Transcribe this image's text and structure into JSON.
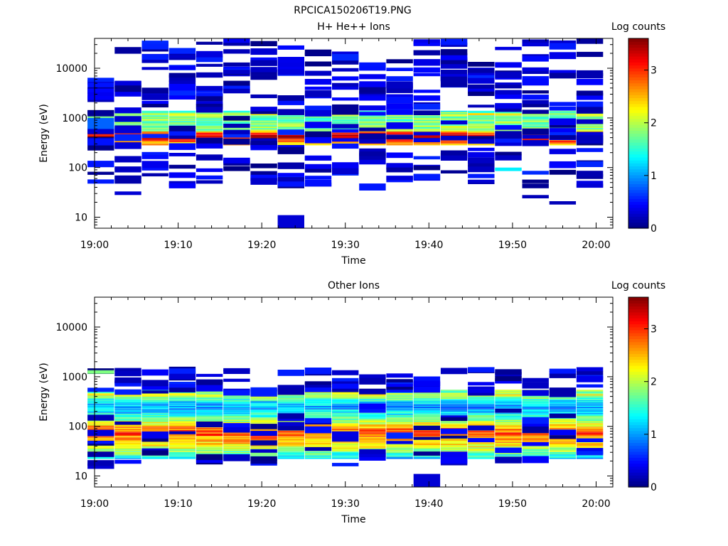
{
  "figure": {
    "title": "RPCICA150206T19.PNG"
  },
  "chart_data": [
    {
      "type": "heatmap",
      "title": "H+ He++ Ions",
      "xlabel": "Time",
      "ylabel": "Energy (eV)",
      "x_range": [
        "19:00:00",
        "20:02:00"
      ],
      "x_ticks": [
        "19:00",
        "19:10",
        "19:20",
        "19:30",
        "19:40",
        "19:50",
        "20:00"
      ],
      "y_scale": "log",
      "y_range": [
        6,
        40000
      ],
      "y_ticks": [
        "10",
        "100",
        "1000",
        "10000"
      ],
      "colorbar": {
        "label": "Log counts",
        "range": [
          0,
          3.6
        ],
        "ticks": [
          "0",
          "1",
          "2",
          "3"
        ]
      },
      "time_bins": [
        "19:00:45",
        "19:04:00",
        "19:07:15",
        "19:10:30",
        "19:13:45",
        "19:17:00",
        "19:20:15",
        "19:23:30",
        "19:26:45",
        "19:30:00",
        "19:33:15",
        "19:36:30",
        "19:39:45",
        "19:43:00",
        "19:46:15",
        "19:49:30",
        "19:52:45",
        "19:56:00",
        "19:59:15"
      ],
      "profile": [
        [
          300,
          2.5
        ],
        [
          330,
          2.9
        ],
        [
          370,
          3.2
        ],
        [
          410,
          3.4
        ],
        [
          450,
          3.2
        ],
        [
          500,
          2.7
        ],
        [
          540,
          1.9
        ],
        [
          1050,
          1.7
        ],
        [
          1150,
          2.2
        ],
        [
          1250,
          1.8
        ],
        [
          1350,
          1.2
        ]
      ],
      "profile_energy_range": [
        280,
        1380
      ],
      "extras": [
        {
          "t": 7,
          "e_low": 6,
          "e_high": 11,
          "v": 0.3
        },
        {
          "t": 0,
          "e_low": 600,
          "e_high": 1000,
          "v": 0.8
        },
        {
          "t": 15,
          "e_low": 85,
          "e_high": 100,
          "v": 1.3
        },
        {
          "t": 16,
          "e_low": 24,
          "e_high": 28,
          "v": 0.2
        },
        {
          "t": 17,
          "e_low": 18,
          "e_high": 21,
          "v": 0.2
        },
        {
          "t": 18,
          "e_low": 40,
          "e_high": 47,
          "v": 0.3
        },
        {
          "t": 1,
          "e_low": 28,
          "e_high": 33,
          "v": 0.3
        },
        {
          "t": 14,
          "e_low": 50,
          "e_high": 57,
          "v": 0.3
        }
      ],
      "sparse_seed": 11
    },
    {
      "type": "heatmap",
      "title": "Other Ions",
      "xlabel": "Time",
      "ylabel": "Energy (eV)",
      "x_range": [
        "19:00:00",
        "20:02:00"
      ],
      "x_ticks": [
        "19:00",
        "19:10",
        "19:20",
        "19:30",
        "19:40",
        "19:50",
        "20:00"
      ],
      "y_scale": "log",
      "y_range": [
        6,
        40000
      ],
      "y_ticks": [
        "10",
        "100",
        "1000",
        "10000"
      ],
      "colorbar": {
        "label": "Log counts",
        "range": [
          0,
          3.6
        ],
        "ticks": [
          "0",
          "1",
          "2",
          "3"
        ]
      },
      "time_bins": [
        "19:00:45",
        "19:04:00",
        "19:07:15",
        "19:10:30",
        "19:13:45",
        "19:17:00",
        "19:20:15",
        "19:23:30",
        "19:26:45",
        "19:30:00",
        "19:33:15",
        "19:36:30",
        "19:39:45",
        "19:43:00",
        "19:46:15",
        "19:49:30",
        "19:52:45",
        "19:56:00",
        "19:59:15"
      ],
      "profile": [
        [
          22,
          1.2
        ],
        [
          30,
          1.8
        ],
        [
          40,
          2.3
        ],
        [
          55,
          2.6
        ],
        [
          70,
          2.9
        ],
        [
          90,
          2.6
        ],
        [
          120,
          2.0
        ],
        [
          170,
          1.4
        ],
        [
          230,
          1.0
        ],
        [
          300,
          1.2
        ],
        [
          370,
          1.8
        ],
        [
          420,
          2.2
        ],
        [
          480,
          1.8
        ],
        [
          1250,
          1.4
        ]
      ],
      "profile_energy_range": [
        22,
        520
      ],
      "extras": [
        {
          "t": 12,
          "e_low": 6,
          "e_high": 11,
          "v": 0.3
        },
        {
          "t": 0,
          "e_low": 1150,
          "e_high": 1350,
          "v": 1.8
        }
      ],
      "sparse_seed": 23
    }
  ]
}
